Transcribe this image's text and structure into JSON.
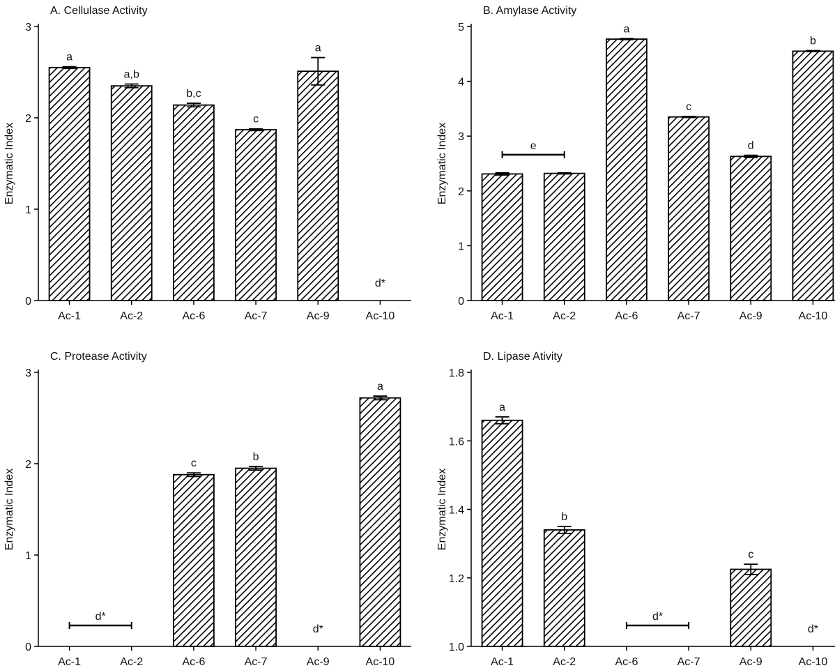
{
  "chart_data": [
    {
      "type": "bar",
      "title": "A. Cellulase Activity",
      "y_label": "Enzymatic Index",
      "categories": [
        "Ac-1",
        "Ac-2",
        "Ac-6",
        "Ac-7",
        "Ac-9",
        "Ac-10"
      ],
      "values": [
        2.55,
        2.35,
        2.14,
        1.87,
        2.51,
        null
      ],
      "errors": [
        0.01,
        0.02,
        0.02,
        0.01,
        0.15,
        null
      ],
      "annotations": [
        {
          "text": "a",
          "categories": [
            "Ac-1"
          ]
        },
        {
          "text": "a,b",
          "categories": [
            "Ac-2"
          ]
        },
        {
          "text": "b,c",
          "categories": [
            "Ac-6"
          ]
        },
        {
          "text": "c",
          "categories": [
            "Ac-7"
          ]
        },
        {
          "text": "a",
          "categories": [
            "Ac-9"
          ]
        },
        {
          "text": "d*",
          "categories": [
            "Ac-10"
          ]
        }
      ],
      "ylim": [
        0,
        3
      ],
      "yticks": [
        0,
        1,
        2,
        3
      ],
      "color": "#000000"
    },
    {
      "type": "bar",
      "title": "B. Amylase Activity",
      "y_label": "Enzymatic Index",
      "categories": [
        "Ac-1",
        "Ac-2",
        "Ac-6",
        "Ac-7",
        "Ac-9",
        "Ac-10"
      ],
      "values": [
        2.31,
        2.32,
        4.77,
        3.35,
        2.63,
        4.55
      ],
      "errors": [
        0.02,
        0.01,
        0.01,
        0.01,
        0.02,
        0.01
      ],
      "annotations": [
        {
          "text": "e",
          "categories": [
            "Ac-1",
            "Ac-2"
          ]
        },
        {
          "text": "a",
          "categories": [
            "Ac-6"
          ]
        },
        {
          "text": "c",
          "categories": [
            "Ac-7"
          ]
        },
        {
          "text": "d",
          "categories": [
            "Ac-9"
          ]
        },
        {
          "text": "b",
          "categories": [
            "Ac-10"
          ]
        }
      ],
      "ylim": [
        0,
        5
      ],
      "yticks": [
        0,
        1,
        2,
        3,
        4,
        5
      ],
      "color": "#000000"
    },
    {
      "type": "bar",
      "title": "C. Protease Activity",
      "y_label": "Enzymatic Index",
      "categories": [
        "Ac-1",
        "Ac-2",
        "Ac-6",
        "Ac-7",
        "Ac-9",
        "Ac-10"
      ],
      "values": [
        null,
        null,
        1.88,
        1.95,
        null,
        2.72
      ],
      "errors": [
        null,
        null,
        0.02,
        0.02,
        null,
        0.02
      ],
      "annotations": [
        {
          "text": "d*",
          "categories": [
            "Ac-1",
            "Ac-2"
          ]
        },
        {
          "text": "c",
          "categories": [
            "Ac-6"
          ]
        },
        {
          "text": "b",
          "categories": [
            "Ac-7"
          ]
        },
        {
          "text": "d*",
          "categories": [
            "Ac-9"
          ]
        },
        {
          "text": "a",
          "categories": [
            "Ac-10"
          ]
        }
      ],
      "ylim": [
        0,
        3
      ],
      "yticks": [
        0,
        1,
        2,
        3
      ],
      "color": "#000000"
    },
    {
      "type": "bar",
      "title": "D. Lipase Ativity",
      "y_label": "Enzymatic Index",
      "categories": [
        "Ac-1",
        "Ac-2",
        "Ac-6",
        "Ac-7",
        "Ac-9",
        "Ac-10"
      ],
      "values": [
        1.66,
        1.34,
        null,
        null,
        1.225,
        null
      ],
      "errors": [
        0.01,
        0.01,
        null,
        null,
        0.015,
        null
      ],
      "annotations": [
        {
          "text": "a",
          "categories": [
            "Ac-1"
          ]
        },
        {
          "text": "b",
          "categories": [
            "Ac-2"
          ]
        },
        {
          "text": "d*",
          "categories": [
            "Ac-6",
            "Ac-7"
          ]
        },
        {
          "text": "c",
          "categories": [
            "Ac-9"
          ]
        },
        {
          "text": "d*",
          "categories": [
            "Ac-10"
          ]
        }
      ],
      "ylim": [
        1.0,
        1.8
      ],
      "yticks": [
        {
          "value": 1.0,
          "label": "1.0"
        },
        1.2,
        1.4,
        1.6,
        1.8
      ],
      "color": "#000000"
    }
  ]
}
